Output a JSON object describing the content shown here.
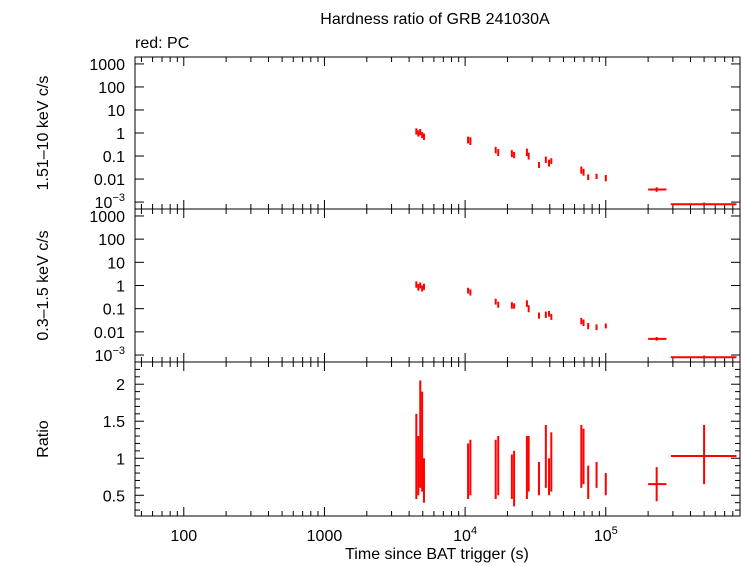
{
  "chart_data": {
    "type": "scatter",
    "title": "Hardness ratio of GRB 241030A",
    "subtitle": "red: PC",
    "xlabel": "Time since BAT trigger (s)",
    "xscale": "log",
    "xlim": [
      45,
      900000
    ],
    "x_ticks": [
      {
        "v": 100,
        "label": "100",
        "sup": ""
      },
      {
        "v": 1000,
        "label": "1000",
        "sup": ""
      },
      {
        "v": 10000,
        "label": "10",
        "sup": "4"
      },
      {
        "v": 100000,
        "label": "10",
        "sup": "5"
      }
    ],
    "panels": [
      {
        "id": "hard",
        "ylabel": "1.51–10 keV c/s",
        "yscale": "log",
        "ylim": [
          0.0005,
          2000
        ],
        "y_ticks": [
          {
            "v": 1000,
            "label": "1000",
            "sup": ""
          },
          {
            "v": 100,
            "label": "100",
            "sup": ""
          },
          {
            "v": 10,
            "label": "10",
            "sup": ""
          },
          {
            "v": 1,
            "label": "1",
            "sup": ""
          },
          {
            "v": 0.1,
            "label": "0.1",
            "sup": ""
          },
          {
            "v": 0.01,
            "label": "0.01",
            "sup": ""
          },
          {
            "v": 0.001,
            "label": "10",
            "sup": "−3"
          }
        ],
        "points": [
          {
            "x": 4500,
            "y": 1.2,
            "xerr": [
              4450,
              4560
            ],
            "yerr": [
              0.85,
              1.6
            ]
          },
          {
            "x": 4650,
            "y": 0.95,
            "xerr": [
              4600,
              4700
            ],
            "yerr": [
              0.7,
              1.3
            ]
          },
          {
            "x": 4800,
            "y": 1.1,
            "xerr": [
              4750,
              4850
            ],
            "yerr": [
              0.8,
              1.5
            ]
          },
          {
            "x": 4950,
            "y": 0.8,
            "xerr": [
              4900,
              5000
            ],
            "yerr": [
              0.6,
              1.1
            ]
          },
          {
            "x": 5100,
            "y": 0.7,
            "xerr": [
              5050,
              5150
            ],
            "yerr": [
              0.5,
              0.95
            ]
          },
          {
            "x": 10500,
            "y": 0.5,
            "xerr": [
              10400,
              10600
            ],
            "yerr": [
              0.35,
              0.7
            ]
          },
          {
            "x": 10900,
            "y": 0.45,
            "xerr": [
              10800,
              11000
            ],
            "yerr": [
              0.3,
              0.65
            ]
          },
          {
            "x": 16500,
            "y": 0.18,
            "xerr": [
              16300,
              16700
            ],
            "yerr": [
              0.13,
              0.25
            ]
          },
          {
            "x": 17200,
            "y": 0.14,
            "xerr": [
              17000,
              17400
            ],
            "yerr": [
              0.1,
              0.2
            ]
          },
          {
            "x": 21500,
            "y": 0.13,
            "xerr": [
              21300,
              21700
            ],
            "yerr": [
              0.09,
              0.18
            ]
          },
          {
            "x": 22300,
            "y": 0.11,
            "xerr": [
              22100,
              22500
            ],
            "yerr": [
              0.08,
              0.15
            ]
          },
          {
            "x": 27500,
            "y": 0.15,
            "xerr": [
              27300,
              27700
            ],
            "yerr": [
              0.1,
              0.21
            ]
          },
          {
            "x": 28300,
            "y": 0.1,
            "xerr": [
              28100,
              28500
            ],
            "yerr": [
              0.07,
              0.14
            ]
          },
          {
            "x": 33500,
            "y": 0.04,
            "xerr": [
              33200,
              33800
            ],
            "yerr": [
              0.03,
              0.055
            ]
          },
          {
            "x": 37500,
            "y": 0.07,
            "xerr": [
              37300,
              37700
            ],
            "yerr": [
              0.05,
              0.095
            ]
          },
          {
            "x": 39500,
            "y": 0.05,
            "xerr": [
              39300,
              39700
            ],
            "yerr": [
              0.035,
              0.07
            ]
          },
          {
            "x": 41000,
            "y": 0.06,
            "xerr": [
              40800,
              41200
            ],
            "yerr": [
              0.045,
              0.08
            ]
          },
          {
            "x": 67000,
            "y": 0.025,
            "xerr": [
              66500,
              67500
            ],
            "yerr": [
              0.017,
              0.035
            ]
          },
          {
            "x": 69500,
            "y": 0.02,
            "xerr": [
              69000,
              70000
            ],
            "yerr": [
              0.014,
              0.028
            ]
          },
          {
            "x": 75000,
            "y": 0.012,
            "xerr": [
              74000,
              76000
            ],
            "yerr": [
              0.009,
              0.016
            ]
          },
          {
            "x": 86000,
            "y": 0.013,
            "xerr": [
              85000,
              87000
            ],
            "yerr": [
              0.01,
              0.017
            ]
          },
          {
            "x": 100000,
            "y": 0.011,
            "xerr": [
              99000,
              101500
            ],
            "yerr": [
              0.008,
              0.015
            ]
          },
          {
            "x": 230000,
            "y": 0.0035,
            "xerr": [
              200000,
              270000
            ],
            "yerr": [
              0.0028,
              0.0044
            ]
          },
          {
            "x": 500000,
            "y": 0.0008,
            "xerr": [
              290000,
              850000
            ],
            "yerr": [
              0.0007,
              0.00095
            ]
          }
        ]
      },
      {
        "id": "soft",
        "ylabel": "0.3–1.5 keV c/s",
        "yscale": "log",
        "ylim": [
          0.0005,
          2000
        ],
        "y_ticks": [
          {
            "v": 1000,
            "label": "1000",
            "sup": ""
          },
          {
            "v": 100,
            "label": "100",
            "sup": ""
          },
          {
            "v": 10,
            "label": "10",
            "sup": ""
          },
          {
            "v": 1,
            "label": "1",
            "sup": ""
          },
          {
            "v": 0.1,
            "label": "0.1",
            "sup": ""
          },
          {
            "v": 0.01,
            "label": "0.01",
            "sup": ""
          },
          {
            "v": 0.001,
            "label": "10",
            "sup": "−3"
          }
        ],
        "points": [
          {
            "x": 4500,
            "y": 1.1,
            "xerr": [
              4450,
              4560
            ],
            "yerr": [
              0.8,
              1.5
            ]
          },
          {
            "x": 4650,
            "y": 0.85,
            "xerr": [
              4600,
              4700
            ],
            "yerr": [
              0.6,
              1.15
            ]
          },
          {
            "x": 4800,
            "y": 1.0,
            "xerr": [
              4750,
              4850
            ],
            "yerr": [
              0.75,
              1.35
            ]
          },
          {
            "x": 4950,
            "y": 0.75,
            "xerr": [
              4900,
              5000
            ],
            "yerr": [
              0.55,
              1.0
            ]
          },
          {
            "x": 5100,
            "y": 0.9,
            "xerr": [
              5050,
              5150
            ],
            "yerr": [
              0.65,
              1.2
            ]
          },
          {
            "x": 10500,
            "y": 0.6,
            "xerr": [
              10400,
              10600
            ],
            "yerr": [
              0.45,
              0.8
            ]
          },
          {
            "x": 10900,
            "y": 0.5,
            "xerr": [
              10800,
              11000
            ],
            "yerr": [
              0.37,
              0.68
            ]
          },
          {
            "x": 16500,
            "y": 0.2,
            "xerr": [
              16300,
              16700
            ],
            "yerr": [
              0.15,
              0.27
            ]
          },
          {
            "x": 17200,
            "y": 0.15,
            "xerr": [
              17000,
              17400
            ],
            "yerr": [
              0.11,
              0.2
            ]
          },
          {
            "x": 21500,
            "y": 0.14,
            "xerr": [
              21300,
              21700
            ],
            "yerr": [
              0.1,
              0.19
            ]
          },
          {
            "x": 22300,
            "y": 0.13,
            "xerr": [
              22100,
              22500
            ],
            "yerr": [
              0.1,
              0.17
            ]
          },
          {
            "x": 27500,
            "y": 0.17,
            "xerr": [
              27300,
              27700
            ],
            "yerr": [
              0.12,
              0.23
            ]
          },
          {
            "x": 28300,
            "y": 0.1,
            "xerr": [
              28100,
              28500
            ],
            "yerr": [
              0.07,
              0.14
            ]
          },
          {
            "x": 33500,
            "y": 0.05,
            "xerr": [
              33200,
              33800
            ],
            "yerr": [
              0.037,
              0.068
            ]
          },
          {
            "x": 37500,
            "y": 0.055,
            "xerr": [
              37300,
              37700
            ],
            "yerr": [
              0.04,
              0.075
            ]
          },
          {
            "x": 39500,
            "y": 0.06,
            "xerr": [
              39300,
              39700
            ],
            "yerr": [
              0.045,
              0.08
            ]
          },
          {
            "x": 41000,
            "y": 0.045,
            "xerr": [
              40800,
              41200
            ],
            "yerr": [
              0.033,
              0.06
            ]
          },
          {
            "x": 67000,
            "y": 0.03,
            "xerr": [
              66500,
              67500
            ],
            "yerr": [
              0.021,
              0.04
            ]
          },
          {
            "x": 69500,
            "y": 0.025,
            "xerr": [
              69000,
              70000
            ],
            "yerr": [
              0.018,
              0.034
            ]
          },
          {
            "x": 75000,
            "y": 0.018,
            "xerr": [
              74000,
              76000
            ],
            "yerr": [
              0.013,
              0.024
            ]
          },
          {
            "x": 86000,
            "y": 0.016,
            "xerr": [
              85000,
              87000
            ],
            "yerr": [
              0.012,
              0.021
            ]
          },
          {
            "x": 100000,
            "y": 0.018,
            "xerr": [
              99000,
              101500
            ],
            "yerr": [
              0.014,
              0.023
            ]
          },
          {
            "x": 230000,
            "y": 0.005,
            "xerr": [
              200000,
              270000
            ],
            "yerr": [
              0.0042,
              0.006
            ]
          },
          {
            "x": 500000,
            "y": 0.0008,
            "xerr": [
              290000,
              850000
            ],
            "yerr": [
              0.0007,
              0.00095
            ]
          }
        ]
      },
      {
        "id": "ratio",
        "ylabel": "Ratio",
        "yscale": "linear",
        "ylim": [
          0.22,
          2.3
        ],
        "y_ticks": [
          {
            "v": 2,
            "label": "2",
            "sup": ""
          },
          {
            "v": 1.5,
            "label": "1.5",
            "sup": ""
          },
          {
            "v": 1,
            "label": "1",
            "sup": ""
          },
          {
            "v": 0.5,
            "label": "0.5",
            "sup": ""
          }
        ],
        "points": [
          {
            "x": 4500,
            "y": 1.0,
            "xerr": [
              4450,
              4560
            ],
            "yerr": [
              0.45,
              1.6
            ]
          },
          {
            "x": 4650,
            "y": 0.9,
            "xerr": [
              4600,
              4700
            ],
            "yerr": [
              0.5,
              1.3
            ]
          },
          {
            "x": 4800,
            "y": 1.35,
            "xerr": [
              4750,
              4850
            ],
            "yerr": [
              0.6,
              2.05
            ]
          },
          {
            "x": 4950,
            "y": 1.1,
            "xerr": [
              4900,
              5000
            ],
            "yerr": [
              0.55,
              1.9
            ]
          },
          {
            "x": 5100,
            "y": 0.7,
            "xerr": [
              5050,
              5150
            ],
            "yerr": [
              0.4,
              1.0
            ]
          },
          {
            "x": 10500,
            "y": 0.75,
            "xerr": [
              10400,
              10600
            ],
            "yerr": [
              0.45,
              1.2
            ]
          },
          {
            "x": 10900,
            "y": 0.85,
            "xerr": [
              10800,
              11000
            ],
            "yerr": [
              0.5,
              1.25
            ]
          },
          {
            "x": 16500,
            "y": 0.8,
            "xerr": [
              16300,
              16700
            ],
            "yerr": [
              0.45,
              1.25
            ]
          },
          {
            "x": 17200,
            "y": 0.9,
            "xerr": [
              17000,
              17400
            ],
            "yerr": [
              0.5,
              1.3
            ]
          },
          {
            "x": 21500,
            "y": 0.75,
            "xerr": [
              21300,
              21700
            ],
            "yerr": [
              0.45,
              1.05
            ]
          },
          {
            "x": 22300,
            "y": 0.7,
            "xerr": [
              22100,
              22500
            ],
            "yerr": [
              0.35,
              1.1
            ]
          },
          {
            "x": 27500,
            "y": 0.9,
            "xerr": [
              27300,
              27700
            ],
            "yerr": [
              0.45,
              1.3
            ]
          },
          {
            "x": 28300,
            "y": 0.95,
            "xerr": [
              28100,
              28500
            ],
            "yerr": [
              0.55,
              1.3
            ]
          },
          {
            "x": 33500,
            "y": 0.7,
            "xerr": [
              33200,
              33800
            ],
            "yerr": [
              0.5,
              0.95
            ]
          },
          {
            "x": 37500,
            "y": 1.05,
            "xerr": [
              37300,
              37700
            ],
            "yerr": [
              0.6,
              1.45
            ]
          },
          {
            "x": 39500,
            "y": 0.75,
            "xerr": [
              39300,
              39700
            ],
            "yerr": [
              0.5,
              1.0
            ]
          },
          {
            "x": 41000,
            "y": 0.95,
            "xerr": [
              40800,
              41200
            ],
            "yerr": [
              0.55,
              1.35
            ]
          },
          {
            "x": 67000,
            "y": 0.95,
            "xerr": [
              66500,
              67500
            ],
            "yerr": [
              0.6,
              1.45
            ]
          },
          {
            "x": 69500,
            "y": 1.1,
            "xerr": [
              69000,
              70000
            ],
            "yerr": [
              0.65,
              1.4
            ]
          },
          {
            "x": 75000,
            "y": 0.65,
            "xerr": [
              74000,
              76000
            ],
            "yerr": [
              0.45,
              0.9
            ]
          },
          {
            "x": 86000,
            "y": 0.75,
            "xerr": [
              85000,
              87000
            ],
            "yerr": [
              0.6,
              0.95
            ]
          },
          {
            "x": 100000,
            "y": 0.65,
            "xerr": [
              99000,
              101500
            ],
            "yerr": [
              0.5,
              0.8
            ]
          },
          {
            "x": 230000,
            "y": 0.65,
            "xerr": [
              200000,
              270000
            ],
            "yerr": [
              0.42,
              0.88
            ]
          },
          {
            "x": 500000,
            "y": 1.03,
            "xerr": [
              290000,
              850000
            ],
            "yerr": [
              0.65,
              1.45
            ]
          }
        ]
      }
    ]
  }
}
